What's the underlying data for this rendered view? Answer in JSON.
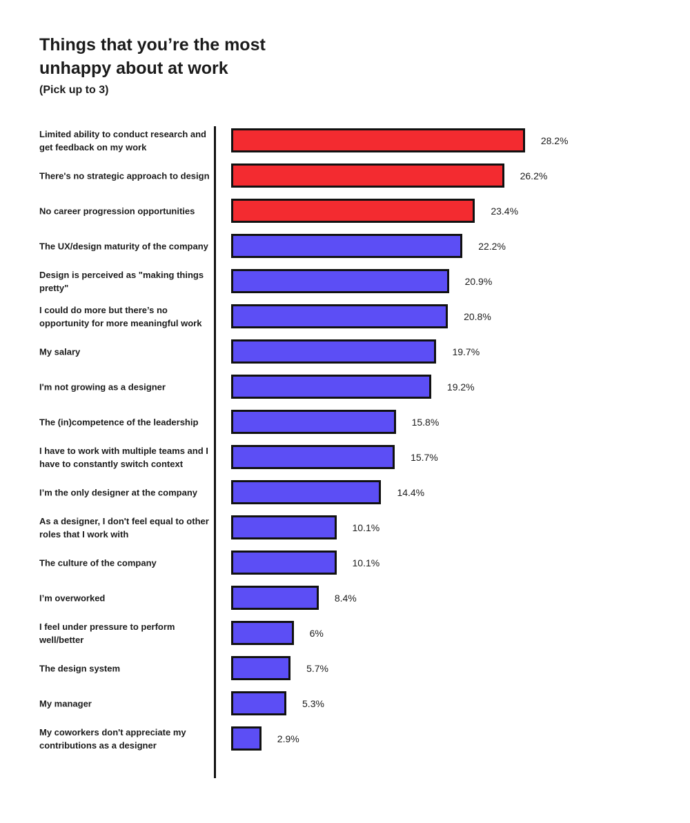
{
  "chart_data": {
    "type": "bar",
    "orientation": "horizontal",
    "title": "Things that you’re the most unhappy about at work",
    "title_lines": [
      "Things that you’re the most",
      "unhappy about at work"
    ],
    "subtitle": "(Pick up to 3)",
    "xlabel": "",
    "ylabel": "",
    "xlim": [
      0,
      30
    ],
    "grid": false,
    "legend": false,
    "value_suffix": "%",
    "colors": {
      "highlight_bar": "#F32B30",
      "default_bar": "#5C4EF5",
      "bar_border": "#111111",
      "axis_line": "#111111",
      "text": "#1b1b1b",
      "background": "#ffffff"
    },
    "items": [
      {
        "label": "Limited ability to conduct research and get feedback on my work",
        "value": 28.2,
        "display": "28.2%",
        "highlight": true
      },
      {
        "label": "There's no strategic approach to design",
        "value": 26.2,
        "display": "26.2%",
        "highlight": true
      },
      {
        "label": "No career progression opportunities",
        "value": 23.4,
        "display": "23.4%",
        "highlight": true
      },
      {
        "label": "The UX/design maturity of the company",
        "value": 22.2,
        "display": "22.2%",
        "highlight": false
      },
      {
        "label": "Design is perceived as \"making things pretty\"",
        "value": 20.9,
        "display": "20.9%",
        "highlight": false
      },
      {
        "label": "I could do more but there’s no opportunity for more meaningful work",
        "value": 20.8,
        "display": "20.8%",
        "highlight": false
      },
      {
        "label": "My salary",
        "value": 19.7,
        "display": "19.7%",
        "highlight": false
      },
      {
        "label": "I'm not growing as a designer",
        "value": 19.2,
        "display": "19.2%",
        "highlight": false
      },
      {
        "label": "The (in)competence of the leadership",
        "value": 15.8,
        "display": "15.8%",
        "highlight": false
      },
      {
        "label": "I have to work with multiple teams and I have to constantly switch context",
        "value": 15.7,
        "display": "15.7%",
        "highlight": false
      },
      {
        "label": "I’m the only designer at the company",
        "value": 14.4,
        "display": "14.4%",
        "highlight": false
      },
      {
        "label": "As a designer, I don't feel equal to other roles that I work with",
        "value": 10.1,
        "display": "10.1%",
        "highlight": false
      },
      {
        "label": "The culture of the company",
        "value": 10.1,
        "display": "10.1%",
        "highlight": false
      },
      {
        "label": "I’m overworked",
        "value": 8.4,
        "display": "8.4%",
        "highlight": false
      },
      {
        "label": "I feel under pressure to perform well/better",
        "value": 6,
        "display": "6%",
        "highlight": false
      },
      {
        "label": "The design system",
        "value": 5.7,
        "display": "5.7%",
        "highlight": false
      },
      {
        "label": "My manager",
        "value": 5.3,
        "display": "5.3%",
        "highlight": false
      },
      {
        "label": "My coworkers don't appreciate my contributions as a designer",
        "value": 2.9,
        "display": "2.9%",
        "highlight": false
      }
    ]
  }
}
